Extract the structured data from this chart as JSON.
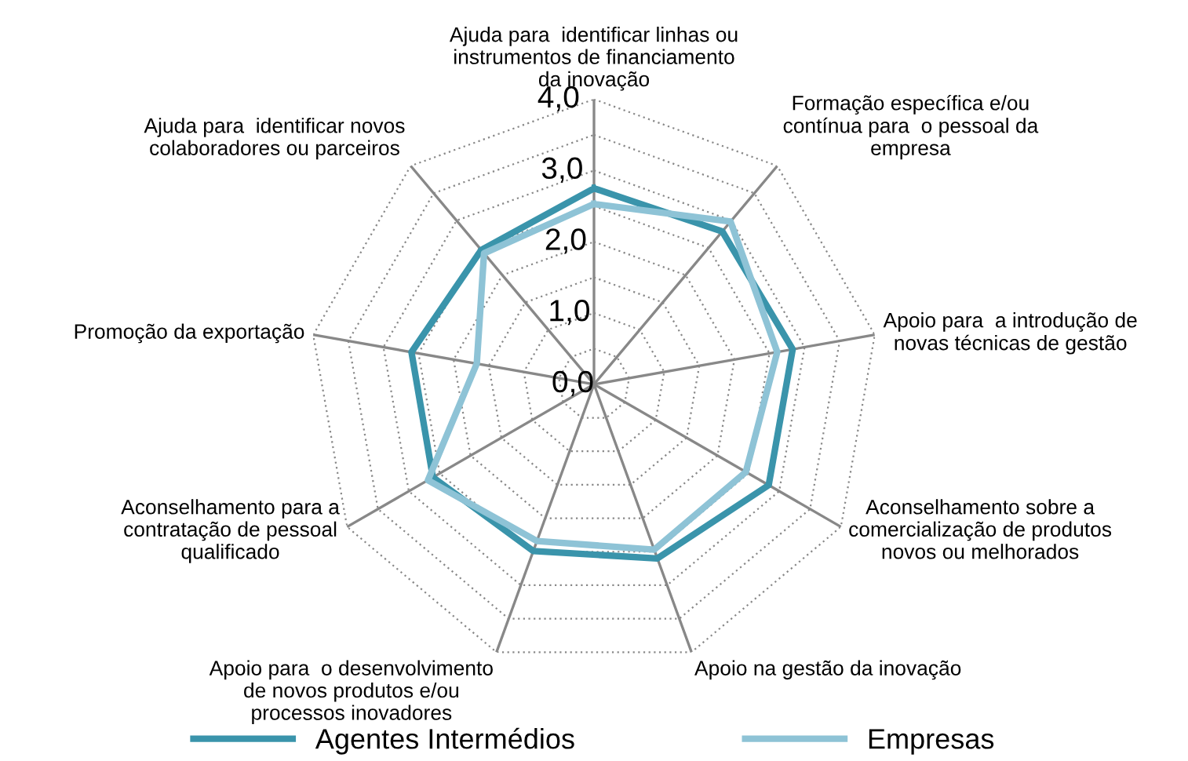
{
  "chart_data": {
    "type": "radar",
    "categories": [
      "Ajuda para  identificar linhas ou\ninstrumentos de financiamento\nda inovação",
      "Formação específica e/ou\ncontínua para  o pessoal da\nempresa",
      "Apoio para  a introdução de\nnovas técnicas de gestão",
      "Aconselhamento sobre a\ncomercialização de produtos\nnovos ou melhorados",
      "Apoio na gestão da inovação",
      "Apoio para  o desenvolvimento\nde novos produtos e/ou\nprocessos inovadores",
      "Aconselhamento para a\ncontratação de pessoal\nqualificado",
      "Promoção da exportação",
      "Ajuda para  identificar novos\ncolaboradores ou parceiros"
    ],
    "series": [
      {
        "name": "Agentes Intermédios",
        "color": "#3a94ab",
        "values": [
          2.75,
          2.8,
          2.83,
          2.83,
          2.6,
          2.49,
          2.61,
          2.6,
          2.46
        ]
      },
      {
        "name": "Empresas",
        "color": "#8ec3d6",
        "values": [
          2.53,
          2.98,
          2.61,
          2.46,
          2.47,
          2.34,
          2.69,
          1.67,
          2.4
        ]
      }
    ],
    "ylim": [
      0,
      4
    ],
    "yticks": [
      {
        "value": 0,
        "label": "0,0"
      },
      {
        "value": 1,
        "label": "1,0"
      },
      {
        "value": 2,
        "label": "2,0"
      },
      {
        "value": 3,
        "label": "3,0"
      },
      {
        "value": 4,
        "label": "4,0"
      }
    ],
    "grid": true,
    "legend": "bottom"
  }
}
